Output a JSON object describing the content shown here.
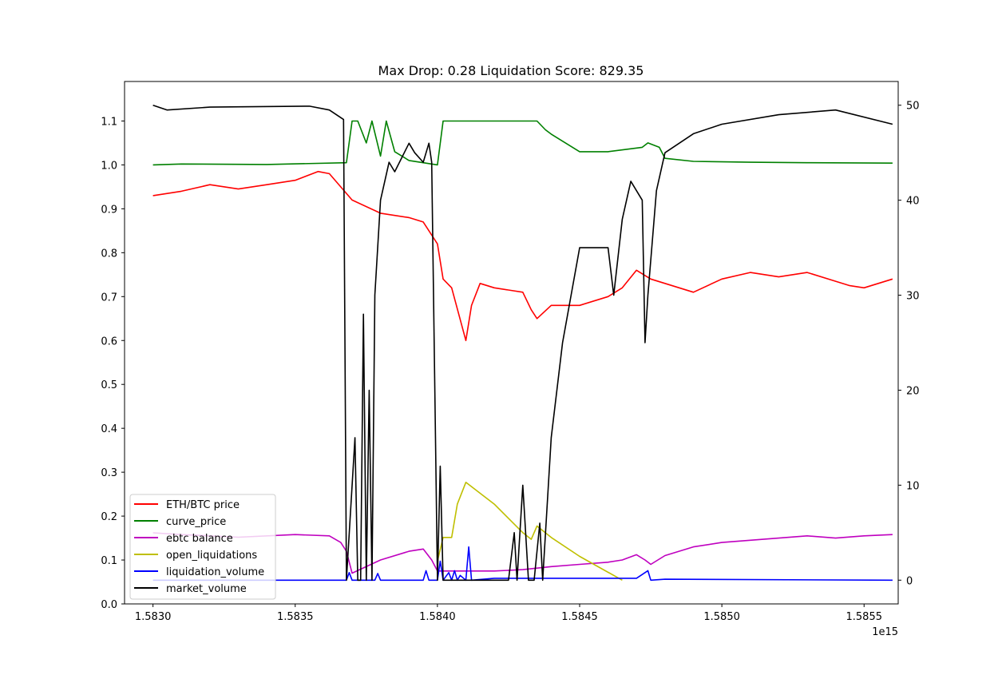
{
  "chart_data": {
    "type": "line",
    "title": "Max Drop: 0.28 Liquidation Score: 829.35",
    "x_offset_label": "1e15",
    "xlim": [
      1.5829,
      1.58562
    ],
    "ylim_left": [
      0.0,
      1.19
    ],
    "ylim_right": [
      -2.5,
      52.5
    ],
    "x_ticks": [
      1.583,
      1.5835,
      1.584,
      1.5845,
      1.585,
      1.5855
    ],
    "x_tick_labels": [
      "1.5830",
      "1.5835",
      "1.5840",
      "1.5845",
      "1.5850",
      "1.5855"
    ],
    "y_left_ticks": [
      0.0,
      0.1,
      0.2,
      0.3,
      0.4,
      0.5,
      0.6,
      0.7,
      0.8,
      0.9,
      1.0,
      1.1
    ],
    "y_left_tick_labels": [
      "0.0",
      "0.1",
      "0.2",
      "0.3",
      "0.4",
      "0.5",
      "0.6",
      "0.7",
      "0.8",
      "0.9",
      "1.0",
      "1.1"
    ],
    "y_right_ticks": [
      0,
      10,
      20,
      30,
      40,
      50
    ],
    "y_right_tick_labels": [
      "0",
      "10",
      "20",
      "30",
      "40",
      "50"
    ],
    "grid": false,
    "legend_position": "lower-left",
    "series": [
      {
        "name": "ETH/BTC price",
        "color": "#ff0000",
        "axis": "left",
        "x": [
          1.583,
          1.5831,
          1.5832,
          1.5833,
          1.5834,
          1.5835,
          1.58358,
          1.58362,
          1.5837,
          1.5838,
          1.5839,
          1.58395,
          1.584,
          1.58402,
          1.58405,
          1.5841,
          1.58412,
          1.58415,
          1.5842,
          1.5843,
          1.58433,
          1.58435,
          1.5844,
          1.5845,
          1.5846,
          1.58465,
          1.5847,
          1.58475,
          1.5848,
          1.5849,
          1.585,
          1.5851,
          1.5852,
          1.5853,
          1.5854,
          1.58545,
          1.5855,
          1.5856
        ],
        "values": [
          0.93,
          0.94,
          0.955,
          0.945,
          0.955,
          0.965,
          0.985,
          0.98,
          0.92,
          0.89,
          0.88,
          0.87,
          0.82,
          0.74,
          0.72,
          0.6,
          0.68,
          0.73,
          0.72,
          0.71,
          0.67,
          0.65,
          0.68,
          0.68,
          0.7,
          0.72,
          0.76,
          0.74,
          0.73,
          0.71,
          0.74,
          0.755,
          0.745,
          0.755,
          0.735,
          0.725,
          0.72,
          0.74
        ]
      },
      {
        "name": "curve_price",
        "color": "#008000",
        "axis": "left",
        "x": [
          1.583,
          1.5831,
          1.5834,
          1.58368,
          1.5837,
          1.58372,
          1.58375,
          1.58377,
          1.5838,
          1.58382,
          1.58385,
          1.5839,
          1.58395,
          1.584,
          1.58402,
          1.58405,
          1.5842,
          1.58435,
          1.58438,
          1.5844,
          1.58445,
          1.5845,
          1.5846,
          1.58472,
          1.58474,
          1.58478,
          1.5848,
          1.5849,
          1.5851,
          1.5853,
          1.5856
        ],
        "values": [
          1.0,
          1.002,
          1.001,
          1.005,
          1.1,
          1.1,
          1.05,
          1.1,
          1.02,
          1.1,
          1.03,
          1.01,
          1.005,
          1.0,
          1.1,
          1.1,
          1.1,
          1.1,
          1.08,
          1.07,
          1.05,
          1.03,
          1.03,
          1.04,
          1.05,
          1.04,
          1.015,
          1.008,
          1.006,
          1.005,
          1.004
        ]
      },
      {
        "name": "ebtc balance",
        "color": "#bf00bf",
        "axis": "left",
        "x": [
          1.583,
          1.5831,
          1.5833,
          1.5835,
          1.58362,
          1.58366,
          1.58368,
          1.5837,
          1.5838,
          1.5839,
          1.58395,
          1.58398,
          1.584,
          1.5841,
          1.5842,
          1.5843,
          1.5844,
          1.5845,
          1.5846,
          1.58465,
          1.5847,
          1.58473,
          1.58475,
          1.5848,
          1.5849,
          1.585,
          1.5851,
          1.5852,
          1.5853,
          1.5854,
          1.5855,
          1.5856
        ],
        "values": [
          0.162,
          0.158,
          0.152,
          0.158,
          0.155,
          0.14,
          0.12,
          0.07,
          0.1,
          0.12,
          0.125,
          0.1,
          0.075,
          0.075,
          0.075,
          0.078,
          0.085,
          0.09,
          0.095,
          0.1,
          0.112,
          0.1,
          0.09,
          0.11,
          0.13,
          0.14,
          0.145,
          0.15,
          0.155,
          0.15,
          0.155,
          0.158
        ]
      },
      {
        "name": "open_liquidations",
        "color": "#bfbf00",
        "axis": "right",
        "x": [
          1.584,
          1.58402,
          1.58405,
          1.58407,
          1.5841,
          1.5842,
          1.5843,
          1.58433,
          1.58435,
          1.5844,
          1.5845,
          1.58465
        ],
        "values": [
          2,
          4.5,
          4.5,
          8,
          10.3,
          8,
          5,
          4.3,
          5.7,
          4.5,
          2.5,
          0
        ]
      },
      {
        "name": "liquidation_volume",
        "color": "#0000ff",
        "axis": "right",
        "x": [
          1.583,
          1.5836,
          1.58368,
          1.58369,
          1.5837,
          1.58378,
          1.58379,
          1.5838,
          1.58395,
          1.58396,
          1.58397,
          1.584,
          1.58401,
          1.58402,
          1.58404,
          1.58405,
          1.58406,
          1.58407,
          1.58408,
          1.5841,
          1.58411,
          1.58412,
          1.5842,
          1.5843,
          1.5845,
          1.5847,
          1.58474,
          1.58475,
          1.5848,
          1.5856
        ],
        "values": [
          0,
          0,
          0,
          0.8,
          0,
          0,
          0.7,
          0,
          0,
          1.0,
          0,
          0,
          2.0,
          0,
          0.8,
          0,
          1.0,
          0,
          0.5,
          0,
          3.5,
          0,
          0.2,
          0.2,
          0.2,
          0.2,
          1.0,
          0,
          0.1,
          0
        ]
      },
      {
        "name": "market_volume",
        "color": "#000000",
        "axis": "right",
        "x": [
          1.583,
          1.58305,
          1.5832,
          1.58355,
          1.58362,
          1.58367,
          1.58368,
          1.58371,
          1.58372,
          1.58373,
          1.58374,
          1.58375,
          1.58376,
          1.58377,
          1.58378,
          1.5838,
          1.58383,
          1.58385,
          1.5839,
          1.58392,
          1.58395,
          1.58397,
          1.58398,
          1.584,
          1.58401,
          1.58402,
          1.58404,
          1.5841,
          1.5842,
          1.58425,
          1.58427,
          1.58428,
          1.5843,
          1.58432,
          1.58434,
          1.58436,
          1.58437,
          1.5844,
          1.58442,
          1.58444,
          1.5845,
          1.58455,
          1.5846,
          1.58462,
          1.58465,
          1.58468,
          1.58472,
          1.58473,
          1.58474,
          1.58477,
          1.5848,
          1.58485,
          1.5849,
          1.585,
          1.5852,
          1.5854,
          1.5856
        ],
        "values": [
          50,
          49.5,
          49.8,
          49.9,
          49.5,
          48.5,
          0,
          15,
          0,
          0,
          28,
          0,
          20,
          0,
          30,
          40,
          44,
          43,
          46,
          45,
          44,
          46,
          44,
          0,
          12,
          0,
          0,
          0,
          0,
          0,
          5,
          0,
          10,
          0,
          0,
          6,
          0,
          15,
          20,
          25,
          35,
          35,
          35,
          30,
          38,
          42,
          40,
          25,
          30,
          41,
          45,
          46,
          47,
          48,
          49,
          49.5,
          48
        ]
      }
    ]
  }
}
